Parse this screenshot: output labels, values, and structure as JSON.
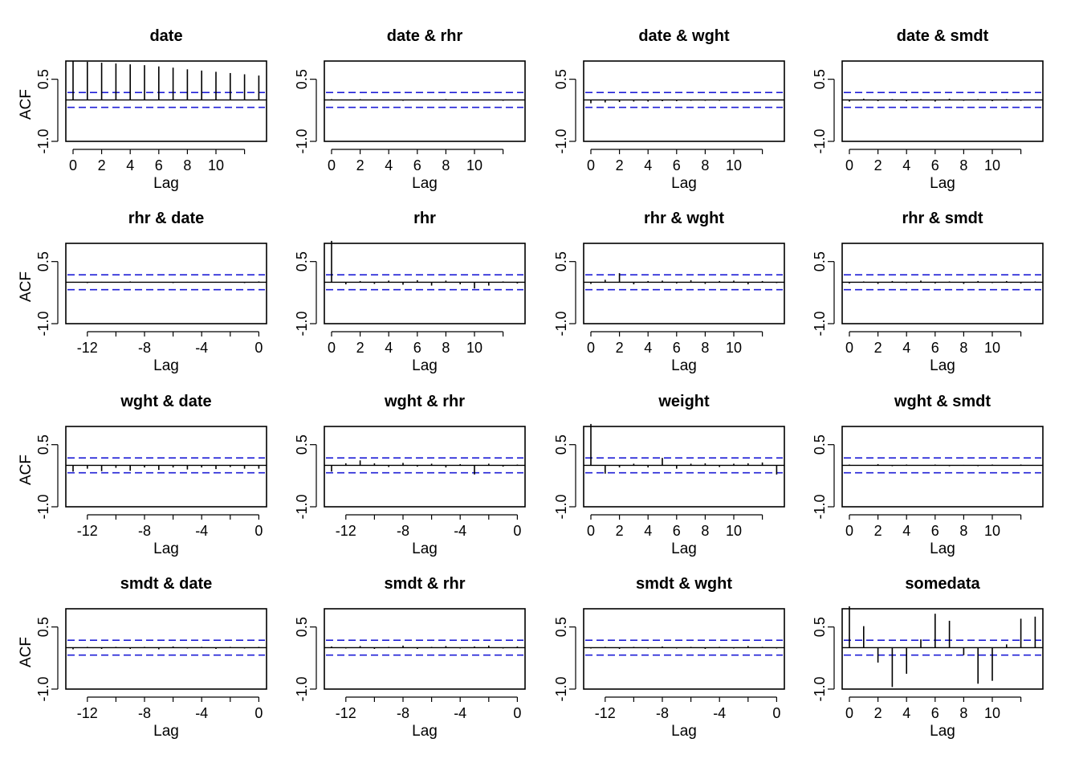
{
  "chart_data": {
    "type": "acf-matrix",
    "ylabel": "ACF",
    "xlabel": "Lag",
    "yticks": [
      "-1.0",
      "0.5"
    ],
    "ylim": [
      -1.0,
      1.0
    ],
    "conf_bound": 0.18,
    "colors": {
      "spike": "#000000",
      "ci": "#1f1fd6",
      "frame": "#000000"
    },
    "pos_ticks": [
      "0",
      "2",
      "4",
      "6",
      "8",
      "10"
    ],
    "neg_ticks": [
      "-12",
      "-8",
      "-4",
      "0"
    ],
    "panels": [
      {
        "title": "date",
        "lags": "pos",
        "show_ylabel": true,
        "values": [
          0.93,
          0.92,
          0.9,
          0.88,
          0.86,
          0.84,
          0.81,
          0.78,
          0.74,
          0.71,
          0.68,
          0.65,
          0.62,
          0.59
        ]
      },
      {
        "title": "date & rhr",
        "lags": "pos",
        "show_ylabel": false,
        "values": [
          0.02,
          -0.01,
          0.02,
          -0.01,
          0.01,
          -0.02,
          0.01,
          -0.01,
          0.02,
          0.0,
          -0.01,
          0.01,
          -0.02,
          0.01
        ]
      },
      {
        "title": "date & wght",
        "lags": "pos",
        "show_ylabel": false,
        "values": [
          -0.08,
          -0.06,
          -0.05,
          -0.04,
          -0.04,
          -0.03,
          -0.03,
          -0.02,
          -0.02,
          -0.02,
          -0.01,
          -0.01,
          -0.01,
          -0.01
        ]
      },
      {
        "title": "date & smdt",
        "lags": "pos",
        "show_ylabel": false,
        "values": [
          -0.04,
          0.03,
          -0.03,
          0.02,
          -0.03,
          0.02,
          -0.04,
          0.03,
          -0.02,
          0.02,
          -0.03,
          0.02,
          -0.02,
          0.01
        ]
      },
      {
        "title": "rhr & date",
        "lags": "neg",
        "show_ylabel": true,
        "values": [
          0.01,
          -0.02,
          0.01,
          -0.01,
          0.02,
          -0.01,
          0.01,
          -0.02,
          0.01,
          -0.01,
          0.01,
          0.01,
          -0.02,
          0.02
        ]
      },
      {
        "title": "rhr",
        "lags": "pos",
        "show_ylabel": false,
        "values": [
          1.0,
          -0.05,
          0.03,
          -0.04,
          0.04,
          -0.06,
          0.05,
          -0.08,
          0.04,
          -0.05,
          -0.15,
          -0.08,
          0.02,
          -0.03
        ]
      },
      {
        "title": "rhr & wght",
        "lags": "pos",
        "show_ylabel": false,
        "values": [
          -0.04,
          0.06,
          0.22,
          -0.05,
          0.03,
          0.04,
          -0.03,
          0.05,
          -0.04,
          0.03,
          0.04,
          -0.05,
          0.03,
          -0.02
        ]
      },
      {
        "title": "rhr & smdt",
        "lags": "pos",
        "show_ylabel": false,
        "values": [
          -0.03,
          0.02,
          -0.04,
          0.03,
          -0.02,
          0.04,
          -0.03,
          0.02,
          -0.04,
          0.03,
          -0.02,
          0.03,
          -0.03,
          0.02
        ]
      },
      {
        "title": "wght & date",
        "lags": "neg",
        "show_ylabel": true,
        "values": [
          -0.15,
          -0.08,
          -0.14,
          -0.06,
          -0.13,
          -0.05,
          -0.11,
          -0.05,
          -0.1,
          -0.05,
          -0.09,
          -0.04,
          -0.08,
          -0.08
        ]
      },
      {
        "title": "wght & rhr",
        "lags": "neg",
        "show_ylabel": false,
        "values": [
          -0.15,
          0.05,
          0.12,
          0.05,
          -0.04,
          0.06,
          -0.03,
          0.04,
          -0.05,
          0.03,
          -0.22,
          0.04,
          -0.03,
          0.02
        ]
      },
      {
        "title": "weight",
        "lags": "pos",
        "show_ylabel": false,
        "values": [
          1.0,
          -0.2,
          -0.05,
          0.04,
          -0.05,
          0.18,
          -0.08,
          0.04,
          0.05,
          -0.04,
          0.04,
          0.05,
          0.07,
          -0.22
        ]
      },
      {
        "title": "wght & smdt",
        "lags": "pos",
        "show_ylabel": false,
        "values": [
          0.02,
          -0.01,
          0.03,
          -0.02,
          0.02,
          -0.01,
          0.02,
          -0.02,
          0.01,
          -0.02,
          0.02,
          -0.01,
          0.02,
          -0.01
        ]
      },
      {
        "title": "smdt & date",
        "lags": "neg",
        "show_ylabel": true,
        "values": [
          -0.04,
          0.02,
          -0.03,
          0.02,
          -0.03,
          0.02,
          -0.04,
          0.03,
          -0.02,
          0.02,
          -0.03,
          0.02,
          -0.02,
          0.02
        ]
      },
      {
        "title": "smdt & rhr",
        "lags": "neg",
        "show_ylabel": false,
        "values": [
          0.03,
          -0.02,
          0.04,
          -0.03,
          0.02,
          0.05,
          -0.03,
          0.02,
          0.04,
          -0.02,
          0.03,
          0.05,
          -0.02,
          0.03
        ]
      },
      {
        "title": "smdt & wght",
        "lags": "neg",
        "show_ylabel": false,
        "values": [
          -0.02,
          0.02,
          -0.03,
          0.02,
          -0.02,
          0.03,
          -0.02,
          0.02,
          -0.03,
          0.02,
          -0.02,
          0.04,
          0.02,
          -0.02
        ]
      },
      {
        "title": "somedata",
        "lags": "pos",
        "show_ylabel": false,
        "values": [
          1.0,
          0.52,
          -0.36,
          -0.95,
          -0.63,
          0.2,
          0.82,
          0.65,
          -0.18,
          -0.87,
          -0.8,
          0.08,
          0.7,
          0.75
        ]
      }
    ]
  }
}
